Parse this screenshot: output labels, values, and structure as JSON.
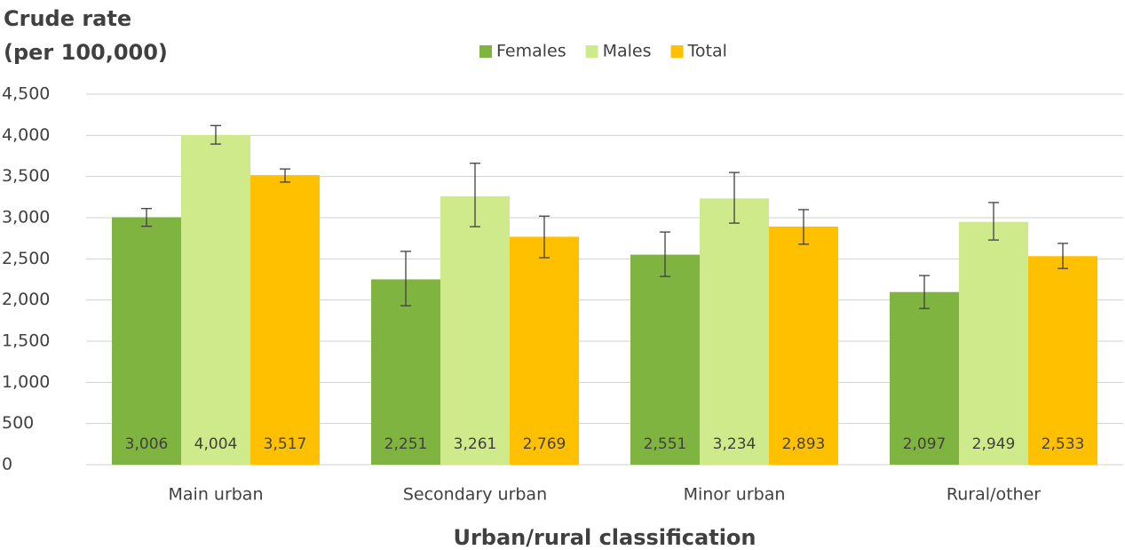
{
  "chart_data": {
    "type": "bar",
    "ylabel": [
      "Crude rate",
      "(per 100,000)"
    ],
    "xlabel": "Urban/rural classification",
    "categories": [
      "Main urban",
      "Secondary urban",
      "Minor urban",
      "Rural/other"
    ],
    "series": [
      {
        "name": "Females",
        "color": "#80b441",
        "values": [
          3006,
          2251,
          2551,
          2097
        ],
        "value_labels": [
          "3,006",
          "2,251",
          "2,551",
          "2,097"
        ],
        "error_minus": [
          110,
          320,
          265,
          200
        ],
        "error_plus": [
          105,
          340,
          275,
          200
        ]
      },
      {
        "name": "Males",
        "color": "#cfea8b",
        "values": [
          4004,
          3261,
          3234,
          2949
        ],
        "value_labels": [
          "4,004",
          "3,261",
          "3,234",
          "2,949"
        ],
        "error_minus": [
          110,
          370,
          300,
          220
        ],
        "error_plus": [
          115,
          400,
          315,
          235
        ]
      },
      {
        "name": "Total",
        "color": "#ffc000",
        "values": [
          3517,
          2769,
          2893,
          2533
        ],
        "value_labels": [
          "3,517",
          "2,769",
          "2,893",
          "2,533"
        ],
        "error_minus": [
          85,
          255,
          215,
          150
        ],
        "error_plus": [
          75,
          250,
          205,
          155
        ]
      }
    ],
    "ylim": [
      0,
      4500
    ],
    "yticks": [
      0,
      500,
      {
        "value": 1000,
        "label": "1,000"
      },
      {
        "value": 1500,
        "label": "1,500"
      },
      {
        "value": 2000,
        "label": "2,000"
      },
      {
        "value": 2500,
        "label": "2,500"
      },
      {
        "value": 3000,
        "label": "3,000"
      },
      {
        "value": 3500,
        "label": "3,500"
      },
      {
        "value": 4000,
        "label": "4,000"
      },
      {
        "value": 4500,
        "label": "4,500"
      }
    ],
    "grid": true,
    "legend": "top"
  }
}
